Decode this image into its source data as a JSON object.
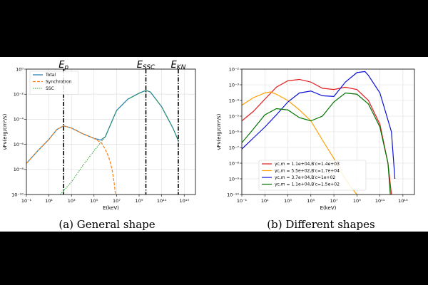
{
  "chart_data": [
    {
      "type": "line",
      "caption": "(a) General shape",
      "xlabel": "E(keV)",
      "ylabel": "νFν(erg/cm²/s)",
      "xscale": "log",
      "yscale": "log",
      "xlim": [
        0.1,
        100000000000000.0
      ],
      "ylim": [
        1e-10,
        1
      ],
      "xticks": [
        {
          "v": 0.1,
          "l": "10⁻¹"
        },
        {
          "v": 10,
          "l": "10¹"
        },
        {
          "v": 1000,
          "l": "10³"
        },
        {
          "v": 100000.0,
          "l": "10⁵"
        },
        {
          "v": 10000000.0,
          "l": "10⁷"
        },
        {
          "v": 1000000000.0,
          "l": "10⁹"
        },
        {
          "v": 100000000000.0,
          "l": "10¹¹"
        },
        {
          "v": 10000000000000.0,
          "l": "10¹³"
        }
      ],
      "yticks": [
        {
          "v": 1e-10,
          "l": "10⁻¹⁰"
        },
        {
          "v": 1e-08,
          "l": "10⁻⁸"
        },
        {
          "v": 1e-06,
          "l": "10⁻⁶"
        },
        {
          "v": 0.0001,
          "l": "10⁻⁴"
        },
        {
          "v": 0.01,
          "l": "10⁻²"
        },
        {
          "v": 1,
          "l": "10⁰"
        }
      ],
      "grid": true,
      "legend_position": "top-left",
      "vlines": [
        {
          "label": "E",
          "sub": "p",
          "x": 200
        },
        {
          "label": "E",
          "sub": "SSC",
          "x": 4000000000.0
        },
        {
          "label": "E",
          "sub": "KN",
          "x": 3000000000000.0
        }
      ],
      "series": [
        {
          "name": "Total",
          "color": "#1f77b4",
          "style": "solid",
          "points": [
            [
              0.1,
              3e-08
            ],
            [
              1,
              3e-07
            ],
            [
              10,
              2.5e-06
            ],
            [
              50,
              1.5e-05
            ],
            [
              200,
              3e-05
            ],
            [
              1000,
              2e-05
            ],
            [
              10000.0,
              7e-06
            ],
            [
              100000.0,
              3e-06
            ],
            [
              400000.0,
              2.2e-06
            ],
            [
              1000000.0,
              4e-06
            ],
            [
              10000000.0,
              0.0005
            ],
            [
              100000000.0,
              0.004
            ],
            [
              1000000000.0,
              0.012
            ],
            [
              4000000000.0,
              0.02
            ],
            [
              10000000000.0,
              0.015
            ],
            [
              100000000000.0,
              0.001
            ],
            [
              1000000000000.0,
              2e-05
            ],
            [
              3000000000000.0,
              2e-06
            ]
          ]
        },
        {
          "name": "Synchrotron",
          "color": "#ff7f0e",
          "style": "dashed",
          "points": [
            [
              0.1,
              3e-08
            ],
            [
              1,
              3e-07
            ],
            [
              10,
              2.5e-06
            ],
            [
              50,
              1.5e-05
            ],
            [
              200,
              3e-05
            ],
            [
              1000,
              2e-05
            ],
            [
              10000.0,
              7e-06
            ],
            [
              100000.0,
              3e-06
            ],
            [
              500000.0,
              1.2e-06
            ],
            [
              1000000.0,
              4e-07
            ],
            [
              2000000.0,
              1e-07
            ],
            [
              4000000.0,
              1e-08
            ],
            [
              6000000.0,
              1e-09
            ],
            [
              8000000.0,
              1e-10
            ]
          ]
        },
        {
          "name": "SSC",
          "color": "#2ca02c",
          "style": "dotted",
          "points": [
            [
              100,
              1e-10
            ],
            [
              1000,
              1e-09
            ],
            [
              10000.0,
              2e-08
            ],
            [
              100000.0,
              3e-07
            ],
            [
              1000000.0,
              4e-06
            ],
            [
              10000000.0,
              0.0005
            ],
            [
              100000000.0,
              0.004
            ],
            [
              1000000000.0,
              0.012
            ],
            [
              4000000000.0,
              0.02
            ],
            [
              10000000000.0,
              0.015
            ],
            [
              100000000000.0,
              0.001
            ],
            [
              1000000000000.0,
              2e-05
            ],
            [
              3000000000000.0,
              2e-06
            ]
          ]
        }
      ]
    },
    {
      "type": "line",
      "caption": "(b) Different shapes",
      "xlabel": "E(keV)",
      "ylabel": "νFν(erg/cm²/s)",
      "xscale": "log",
      "yscale": "log",
      "xlim": [
        0.1,
        100000000000000.0
      ],
      "ylim": [
        1e-10,
        0.01
      ],
      "xticks": [
        {
          "v": 0.1,
          "l": "10⁻¹"
        },
        {
          "v": 10,
          "l": "10¹"
        },
        {
          "v": 1000,
          "l": "10³"
        },
        {
          "v": 100000.0,
          "l": "10⁵"
        },
        {
          "v": 10000000.0,
          "l": "10⁷"
        },
        {
          "v": 1000000000.0,
          "l": "10⁹"
        },
        {
          "v": 100000000000.0,
          "l": "10¹¹"
        },
        {
          "v": 10000000000000.0,
          "l": "10¹³"
        }
      ],
      "yticks": [
        {
          "v": 1e-10,
          "l": "10⁻¹⁰"
        },
        {
          "v": 1e-09,
          "l": "10⁻⁹"
        },
        {
          "v": 1e-08,
          "l": "10⁻⁸"
        },
        {
          "v": 1e-07,
          "l": "10⁻⁷"
        },
        {
          "v": 1e-06,
          "l": "10⁻⁶"
        },
        {
          "v": 1e-05,
          "l": "10⁻⁵"
        },
        {
          "v": 0.0001,
          "l": "10⁻⁴"
        },
        {
          "v": 0.001,
          "l": "10⁻³"
        },
        {
          "v": 0.01,
          "l": "10⁻²"
        }
      ],
      "grid": true,
      "legend_position": "bottom-left",
      "series": [
        {
          "name": "γc,m = 1.1e+04,B′c=1.4e+03",
          "color": "#e41a1c",
          "style": "solid",
          "points": [
            [
              0.1,
              5e-06
            ],
            [
              1,
              2e-05
            ],
            [
              10,
              0.00012
            ],
            [
              100,
              0.0007
            ],
            [
              1000,
              0.0018
            ],
            [
              10000.0,
              0.0022
            ],
            [
              100000.0,
              0.0015
            ],
            [
              1000000.0,
              0.0006
            ],
            [
              10000000.0,
              0.0005
            ],
            [
              100000000.0,
              0.0007
            ],
            [
              1000000000.0,
              0.0005
            ],
            [
              10000000000.0,
              0.0001
            ],
            [
              100000000000.0,
              3e-06
            ],
            [
              500000000000.0,
              1e-08
            ],
            [
              1000000000000.0,
              1e-10
            ]
          ]
        },
        {
          "name": "γc,m = 5.5e+02,B′c=1.7e+04",
          "color": "#ff9f00",
          "style": "solid",
          "points": [
            [
              0.1,
              5e-05
            ],
            [
              1,
              0.00015
            ],
            [
              10,
              0.0003
            ],
            [
              30,
              0.00035
            ],
            [
              100,
              0.00025
            ],
            [
              1000,
              0.0001
            ],
            [
              10000.0,
              2.5e-05
            ],
            [
              100000.0,
              5e-06
            ],
            [
              1000000.0,
              3e-07
            ],
            [
              10000000.0,
              2e-08
            ],
            [
              30000000.0,
              4e-09
            ],
            [
              100000000.0,
              1e-09
            ],
            [
              300000000.0,
              3e-10
            ],
            [
              1000000000.0,
              1e-10
            ]
          ]
        },
        {
          "name": "γc,m = 3.7e+04,B′c=1e+02",
          "color": "#0a10d4",
          "style": "solid",
          "points": [
            [
              0.1,
              8e-08
            ],
            [
              1,
              4e-07
            ],
            [
              10,
              2e-06
            ],
            [
              100,
              1.2e-05
            ],
            [
              1000,
              8e-05
            ],
            [
              10000.0,
              0.0003
            ],
            [
              100000.0,
              0.0004
            ],
            [
              1000000.0,
              0.0002
            ],
            [
              10000000.0,
              0.00018
            ],
            [
              100000000.0,
              0.0015
            ],
            [
              1000000000.0,
              0.006
            ],
            [
              5000000000.0,
              0.007
            ],
            [
              10000000000.0,
              0.004
            ],
            [
              100000000000.0,
              0.0003
            ],
            [
              1000000000000.0,
              1e-06
            ],
            [
              2000000000000.0,
              1e-09
            ]
          ]
        },
        {
          "name": "γc,m = 1.1e+04,B′c=1.5e+02",
          "color": "#007300",
          "style": "solid",
          "points": [
            [
              0.1,
              2e-07
            ],
            [
              1,
              1.5e-06
            ],
            [
              10,
              1.2e-05
            ],
            [
              100,
              3e-05
            ],
            [
              1000,
              2.5e-05
            ],
            [
              10000.0,
              8e-06
            ],
            [
              100000.0,
              5e-06
            ],
            [
              1000000.0,
              1e-05
            ],
            [
              10000000.0,
              8e-05
            ],
            [
              100000000.0,
              0.0003
            ],
            [
              1000000000.0,
              0.00025
            ],
            [
              10000000000.0,
              6e-05
            ],
            [
              100000000000.0,
              2e-06
            ],
            [
              500000000000.0,
              1e-08
            ],
            [
              800000000000.0,
              1e-10
            ]
          ]
        }
      ]
    }
  ]
}
